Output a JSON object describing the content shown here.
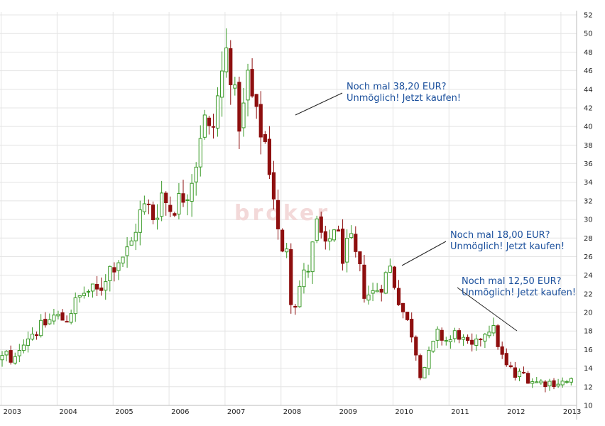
{
  "chart_data": {
    "type": "candlestick",
    "title": "",
    "xlabel": "",
    "ylabel": "",
    "ylim": [
      10,
      52
    ],
    "y_ticks": [
      10,
      12,
      14,
      16,
      18,
      20,
      22,
      24,
      26,
      28,
      30,
      32,
      34,
      36,
      38,
      40,
      42,
      44,
      46,
      48,
      50,
      52
    ],
    "x_ticks": [
      {
        "label": "2003",
        "value": 2003.0
      },
      {
        "label": "2004",
        "value": 2004.0
      },
      {
        "label": "2005",
        "value": 2005.0
      },
      {
        "label": "2006",
        "value": 2006.0
      },
      {
        "label": "2007",
        "value": 2007.0
      },
      {
        "label": "2008",
        "value": 2008.0
      },
      {
        "label": "2009",
        "value": 2009.0
      },
      {
        "label": "2010",
        "value": 2010.0
      },
      {
        "label": "2011",
        "value": 2011.0
      },
      {
        "label": "2012",
        "value": 2012.0
      },
      {
        "label": "2013",
        "value": 2013.0
      }
    ],
    "xlim": [
      2002.98,
      2013.28
    ],
    "y_axis_position": "right",
    "grid": true,
    "up_color": "#3a9a28",
    "down_color": "#8e0f0f",
    "close_anchors": [
      [
        2002.95,
        14.8
      ],
      [
        2003.1,
        15.6
      ],
      [
        2003.2,
        13.9
      ],
      [
        2003.35,
        16.8
      ],
      [
        2003.5,
        17.6
      ],
      [
        2003.7,
        18.3
      ],
      [
        2003.95,
        19.6
      ],
      [
        2004.15,
        19.2
      ],
      [
        2004.3,
        20.8
      ],
      [
        2004.5,
        22.3
      ],
      [
        2004.75,
        22.2
      ],
      [
        2004.9,
        24.5
      ],
      [
        2005.1,
        25.8
      ],
      [
        2005.3,
        26.8
      ],
      [
        2005.45,
        30.3
      ],
      [
        2005.6,
        31.5
      ],
      [
        2005.75,
        30.0
      ],
      [
        2005.85,
        33.0
      ],
      [
        2006.0,
        31.2
      ],
      [
        2006.15,
        31.8
      ],
      [
        2006.35,
        33.5
      ],
      [
        2006.5,
        36.8
      ],
      [
        2006.6,
        41.2
      ],
      [
        2006.75,
        38.5
      ],
      [
        2006.9,
        44.2
      ],
      [
        2007.05,
        48.8
      ],
      [
        2007.2,
        41.5
      ],
      [
        2007.3,
        40.0
      ],
      [
        2007.4,
        45.6
      ],
      [
        2007.55,
        40.8
      ],
      [
        2007.7,
        38.8
      ],
      [
        2007.85,
        33.8
      ],
      [
        2008.0,
        25.5
      ],
      [
        2008.1,
        27.5
      ],
      [
        2008.2,
        20.0
      ],
      [
        2008.35,
        23.2
      ],
      [
        2008.5,
        25.0
      ],
      [
        2008.65,
        29.6
      ],
      [
        2008.8,
        26.4
      ],
      [
        2008.95,
        29.5
      ],
      [
        2009.1,
        26.2
      ],
      [
        2009.25,
        27.4
      ],
      [
        2009.4,
        24.6
      ],
      [
        2009.5,
        21.9
      ],
      [
        2009.65,
        22.1
      ],
      [
        2009.8,
        23.2
      ],
      [
        2009.95,
        24.8
      ],
      [
        2010.05,
        22.6
      ],
      [
        2010.2,
        19.7
      ],
      [
        2010.35,
        17.6
      ],
      [
        2010.5,
        13.2
      ],
      [
        2010.65,
        15.5
      ],
      [
        2010.8,
        17.6
      ],
      [
        2011.0,
        16.8
      ],
      [
        2011.15,
        18.0
      ],
      [
        2011.3,
        16.4
      ],
      [
        2011.45,
        16.0
      ],
      [
        2011.6,
        17.8
      ],
      [
        2011.75,
        18.6
      ],
      [
        2011.85,
        17.2
      ],
      [
        2012.0,
        14.2
      ],
      [
        2012.1,
        13.9
      ],
      [
        2012.2,
        12.9
      ],
      [
        2012.3,
        13.6
      ],
      [
        2012.4,
        13.0
      ],
      [
        2012.55,
        12.5
      ]
    ],
    "annotations": [
      {
        "lines": [
          "Noch mal 38,20 EUR?",
          "Unmöglich! Jetzt kaufen!"
        ],
        "x": 2007.0,
        "y": 38.2
      },
      {
        "lines": [
          "Noch mal 18,00 EUR?",
          "Unmöglich! Jetzt kaufen!"
        ],
        "x": 2009.9,
        "y": 18.0
      },
      {
        "lines": [
          "Noch mal 12,50 EUR?",
          "Unmöglich! Jetzt kaufen!"
        ],
        "x": 2011.8,
        "y": 12.5
      }
    ],
    "watermark": "broker"
  }
}
